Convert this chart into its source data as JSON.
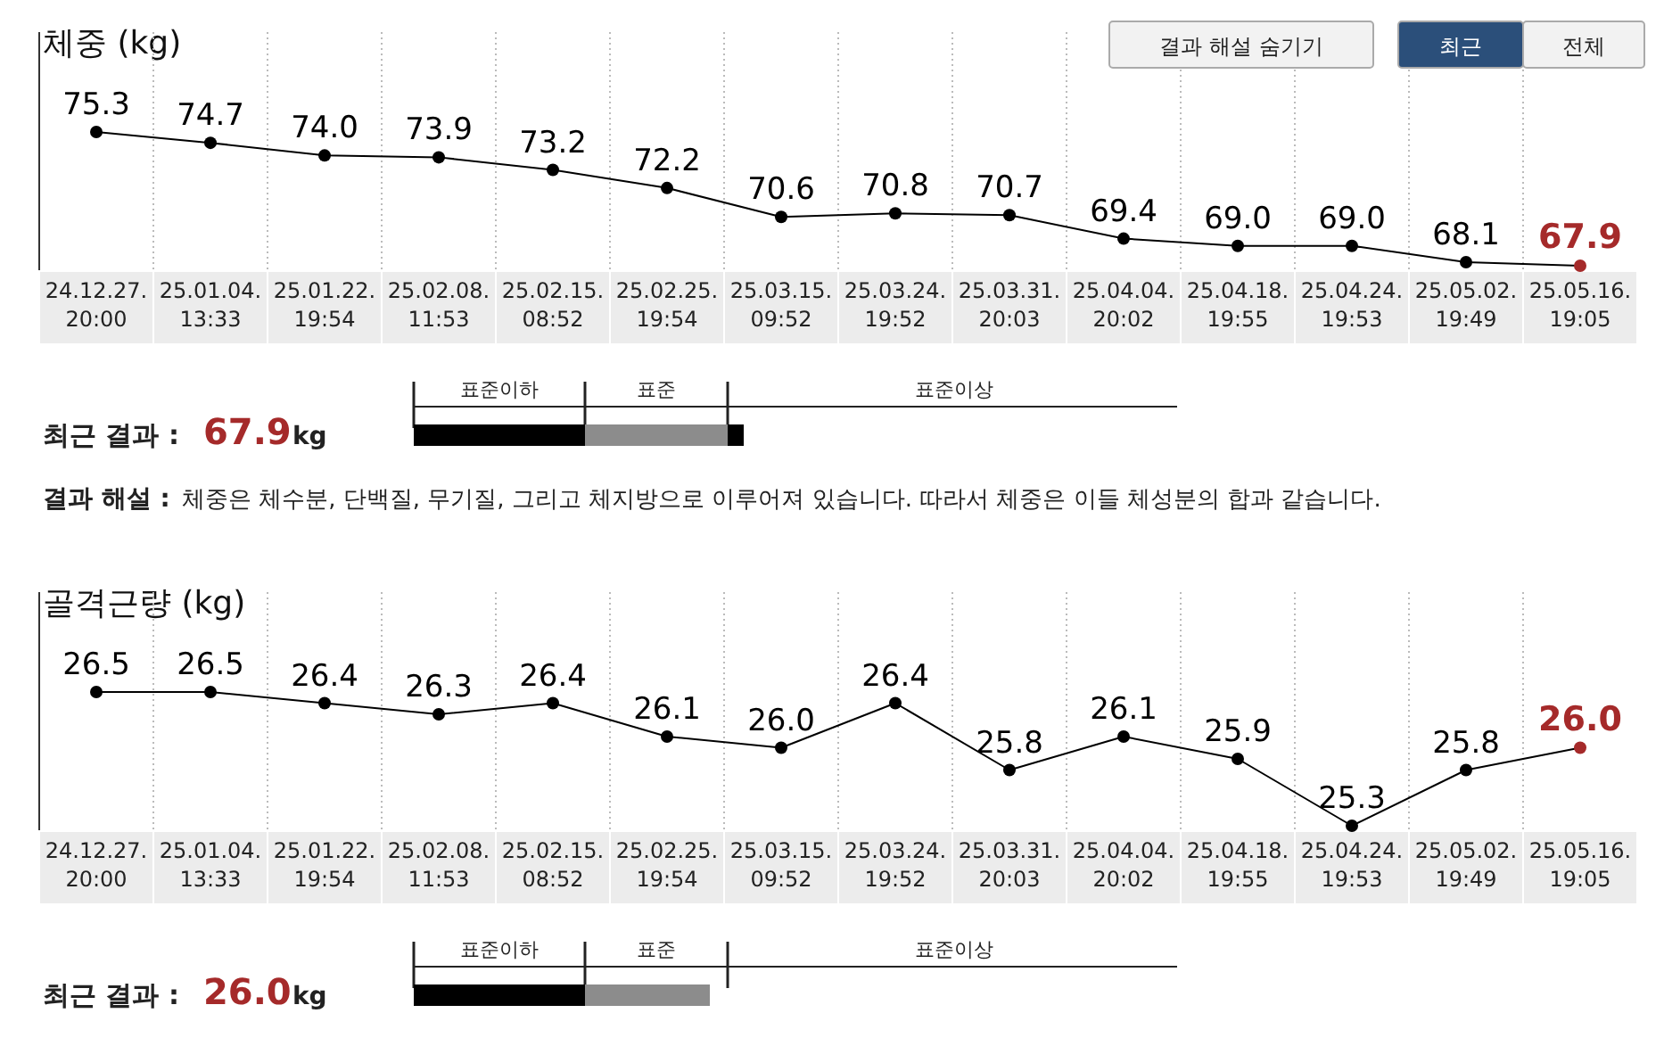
{
  "chart_data": [
    {
      "type": "line",
      "title": "체중 (kg)",
      "categories": [
        "24.12.27.\n20:00",
        "25.01.04.\n13:33",
        "25.01.22.\n19:54",
        "25.02.08.\n11:53",
        "25.02.15.\n08:52",
        "25.02.25.\n19:54",
        "25.03.15.\n09:52",
        "25.03.24.\n19:52",
        "25.03.31.\n20:03",
        "25.04.04.\n20:02",
        "25.04.18.\n19:55",
        "25.04.24.\n19:53",
        "25.05.02.\n19:49",
        "25.05.16.\n19:05"
      ],
      "series": [
        {
          "color": "#000000",
          "colors": [
            "#000000",
            "#000000",
            "#000000",
            "#000000",
            "#000000",
            "#000000",
            "#000000",
            "#000000",
            "#000000",
            "#000000",
            "#000000",
            "#000000",
            "#000000",
            "#a52a2a"
          ],
          "values": [
            75.3,
            74.7,
            74.0,
            73.9,
            73.2,
            72.2,
            70.6,
            70.8,
            70.7,
            69.4,
            69.0,
            69.0,
            68.1,
            67.9
          ],
          "value_labels": [
            "75.3",
            "74.7",
            "74.0",
            "73.9",
            "73.2",
            "72.2",
            "70.6",
            "70.8",
            "70.7",
            "69.4",
            "69.0",
            "69.0",
            "68.1",
            "67.9"
          ]
        }
      ],
      "marker": "circle",
      "grid": "x",
      "annotations": [
        "최근 결과 :",
        "67.9",
        "kg",
        "표준이하",
        "표준",
        "표준이상",
        "결과 해설 :",
        "체중은 체수분, 단백질, 무기질, 그리고 체지방으로 이루어져 있습니다. 따라서 체중은 이들 체성분의 합과 같습니다.",
        "결과 해설 숨기기",
        "최근",
        "전체"
      ]
    },
    {
      "type": "line",
      "title": "골격근량 (kg)",
      "categories": [
        "24.12.27.\n20:00",
        "25.01.04.\n13:33",
        "25.01.22.\n19:54",
        "25.02.08.\n11:53",
        "25.02.15.\n08:52",
        "25.02.25.\n19:54",
        "25.03.15.\n09:52",
        "25.03.24.\n19:52",
        "25.03.31.\n20:03",
        "25.04.04.\n20:02",
        "25.04.18.\n19:55",
        "25.04.24.\n19:53",
        "25.05.02.\n19:49",
        "25.05.16.\n19:05"
      ],
      "series": [
        {
          "color": "#000000",
          "colors": [
            "#000000",
            "#000000",
            "#000000",
            "#000000",
            "#000000",
            "#000000",
            "#000000",
            "#000000",
            "#000000",
            "#000000",
            "#000000",
            "#000000",
            "#000000",
            "#a52a2a"
          ],
          "values": [
            26.5,
            26.5,
            26.4,
            26.3,
            26.4,
            26.1,
            26.0,
            26.4,
            25.8,
            26.1,
            25.9,
            25.3,
            25.8,
            26.0
          ],
          "value_labels": [
            "26.5",
            "26.5",
            "26.4",
            "26.3",
            "26.4",
            "26.1",
            "26.0",
            "26.4",
            "25.8",
            "26.1",
            "25.9",
            "25.3",
            "25.8",
            "26.0"
          ]
        }
      ],
      "marker": "circle",
      "grid": "x",
      "annotations": [
        "최근 결과 :",
        "26.0",
        "kg",
        "표준이하",
        "표준",
        "표준이상"
      ]
    }
  ]
}
